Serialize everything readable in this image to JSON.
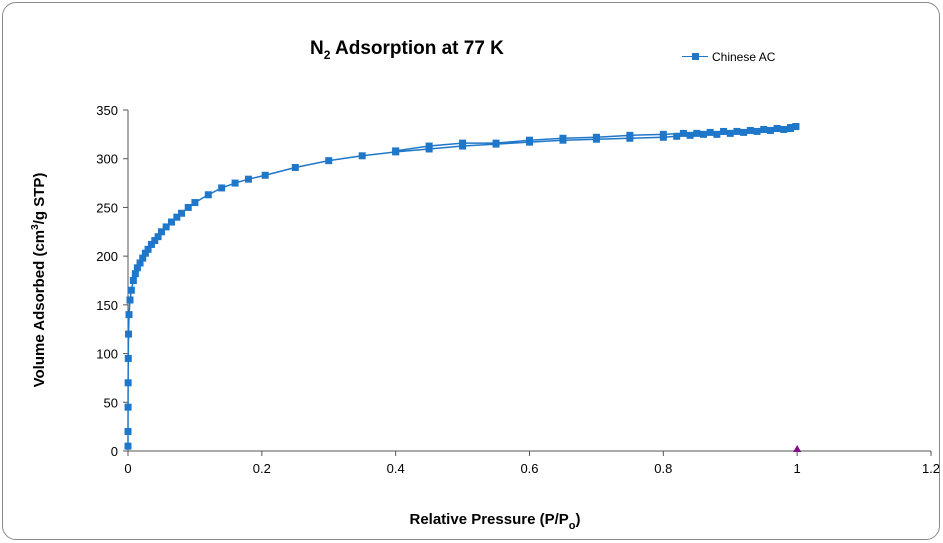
{
  "chart_data": {
    "type": "line",
    "title": "N2 Adsorption at 77 K",
    "title_main": "N",
    "title_sub": "2",
    "title_rest": " Adsorption at 77 K",
    "xlabel": "Relative Pressure (P/Po)",
    "xlabel_main": "Relative Pressure (P/P",
    "xlabel_sub": "o",
    "xlabel_end": ")",
    "ylabel": "Volume Adsorbed (cm3/g STP)",
    "ylabel_pre": "Volume Adsorbed (cm",
    "ylabel_sup": "3",
    "ylabel_post": "/g STP)",
    "xlim": [
      0,
      1.2
    ],
    "ylim": [
      0,
      350
    ],
    "xticks": [
      "0",
      "0.2",
      "0.4",
      "0.6",
      "0.8",
      "1",
      "1.2"
    ],
    "yticks": [
      "0",
      "50",
      "100",
      "150",
      "200",
      "250",
      "300",
      "350"
    ],
    "grid": false,
    "legend_position": "top-right",
    "color": "#1F77C9",
    "marker_color": "#8B0A8B",
    "series": [
      {
        "name": "Chinese AC",
        "adsorption": [
          [
            0.0,
            5
          ],
          [
            0.0,
            20
          ],
          [
            0.0001,
            45
          ],
          [
            0.0002,
            70
          ],
          [
            0.0004,
            95
          ],
          [
            0.0008,
            120
          ],
          [
            0.0015,
            140
          ],
          [
            0.003,
            155
          ],
          [
            0.005,
            165
          ],
          [
            0.008,
            175
          ],
          [
            0.011,
            182
          ],
          [
            0.014,
            188
          ],
          [
            0.018,
            193
          ],
          [
            0.022,
            198
          ],
          [
            0.026,
            203
          ],
          [
            0.03,
            207
          ],
          [
            0.035,
            212
          ],
          [
            0.04,
            216
          ],
          [
            0.045,
            220
          ],
          [
            0.05,
            225
          ],
          [
            0.057,
            230
          ],
          [
            0.065,
            235
          ],
          [
            0.073,
            240
          ],
          [
            0.08,
            244
          ],
          [
            0.09,
            250
          ],
          [
            0.1,
            255
          ],
          [
            0.12,
            263
          ],
          [
            0.14,
            270
          ],
          [
            0.16,
            275
          ],
          [
            0.18,
            279
          ],
          [
            0.205,
            283
          ],
          [
            0.25,
            291
          ],
          [
            0.3,
            298
          ],
          [
            0.35,
            303
          ],
          [
            0.4,
            307
          ],
          [
            0.45,
            310
          ],
          [
            0.5,
            313
          ],
          [
            0.55,
            315
          ],
          [
            0.6,
            317
          ],
          [
            0.65,
            319
          ],
          [
            0.7,
            320
          ],
          [
            0.75,
            321
          ],
          [
            0.8,
            322
          ],
          [
            0.82,
            323
          ],
          [
            0.84,
            324
          ],
          [
            0.86,
            325
          ],
          [
            0.88,
            325
          ],
          [
            0.9,
            326
          ],
          [
            0.92,
            327
          ],
          [
            0.94,
            328
          ],
          [
            0.96,
            329
          ],
          [
            0.98,
            330
          ],
          [
            0.99,
            331
          ],
          [
            0.998,
            333
          ]
        ],
        "desorption": [
          [
            0.998,
            333
          ],
          [
            0.99,
            332
          ],
          [
            0.97,
            331
          ],
          [
            0.95,
            330
          ],
          [
            0.93,
            329
          ],
          [
            0.91,
            328
          ],
          [
            0.89,
            328
          ],
          [
            0.87,
            327
          ],
          [
            0.85,
            326
          ],
          [
            0.83,
            326
          ],
          [
            0.8,
            325
          ],
          [
            0.75,
            324
          ],
          [
            0.7,
            322
          ],
          [
            0.65,
            321
          ],
          [
            0.6,
            319
          ],
          [
            0.55,
            316
          ],
          [
            0.5,
            316
          ],
          [
            0.45,
            313
          ],
          [
            0.4,
            308
          ]
        ]
      }
    ],
    "extra_marker": {
      "x": 1.0,
      "y": 0
    }
  }
}
